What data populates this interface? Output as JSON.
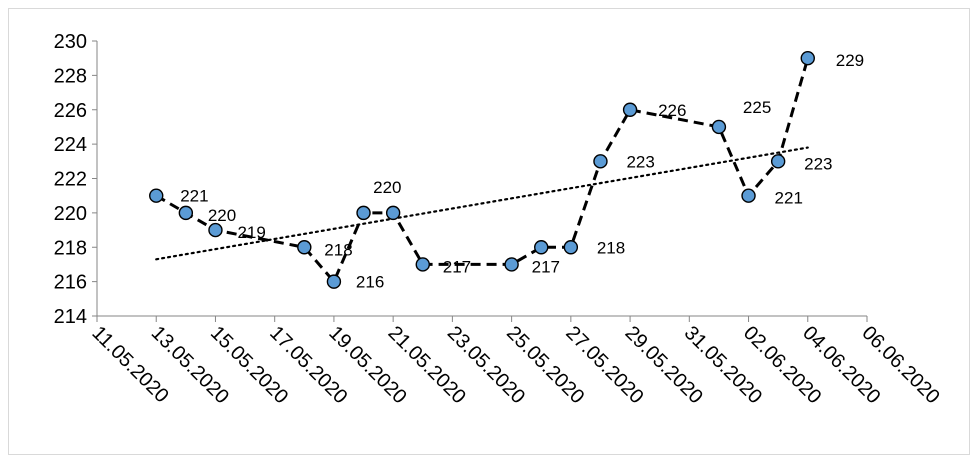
{
  "chart_data": {
    "type": "line",
    "title": "",
    "xlabel": "",
    "ylabel": "",
    "ylim": [
      214,
      230
    ],
    "y_tick_step": 2,
    "x_axis": {
      "kind": "date",
      "tick_labels": [
        "11.05.2020",
        "13.05.2020",
        "15.05.2020",
        "17.05.2020",
        "19.05.2020",
        "21.05.2020",
        "23.05.2020",
        "25.05.2020",
        "27.05.2020",
        "29.05.2020",
        "31.05.2020",
        "02.06.2020",
        "04.06.2020",
        "06.06.2020"
      ],
      "range": [
        "11.05.2020",
        "06.06.2020"
      ]
    },
    "series": [
      {
        "points": [
          {
            "x": "13.05.2020",
            "y": 221,
            "label": "221"
          },
          {
            "x": "14.05.2020",
            "y": 220,
            "label": "220"
          },
          {
            "x": "15.05.2020",
            "y": 219,
            "label": "219"
          },
          {
            "x": "18.05.2020",
            "y": 218,
            "label": "218"
          },
          {
            "x": "19.05.2020",
            "y": 216,
            "label": "216"
          },
          {
            "x": "20.05.2020",
            "y": 220,
            "label": ""
          },
          {
            "x": "21.05.2020",
            "y": 220,
            "label": "220"
          },
          {
            "x": "22.05.2020",
            "y": 217,
            "label": "217"
          },
          {
            "x": "25.05.2020",
            "y": 217,
            "label": "217"
          },
          {
            "x": "26.05.2020",
            "y": 218,
            "label": ""
          },
          {
            "x": "27.05.2020",
            "y": 218,
            "label": "218"
          },
          {
            "x": "28.05.2020",
            "y": 223,
            "label": "223"
          },
          {
            "x": "29.05.2020",
            "y": 226,
            "label": "226"
          },
          {
            "x": "01.06.2020",
            "y": 225,
            "label": "225"
          },
          {
            "x": "02.06.2020",
            "y": 221,
            "label": "221"
          },
          {
            "x": "03.06.2020",
            "y": 223,
            "label": "223"
          },
          {
            "x": "04.06.2020",
            "y": 229,
            "label": "229"
          }
        ],
        "line_style": "dashed",
        "line_color": "#000000",
        "marker": "circle",
        "marker_fill": "#5b9bd5",
        "marker_edge": "#000000"
      }
    ],
    "trendline": {
      "type": "linear",
      "style": "dotted",
      "color": "#000000",
      "from": {
        "x": "13.05.2020",
        "y": 217.3
      },
      "to": {
        "x": "04.06.2020",
        "y": 223.8
      }
    },
    "grid": false,
    "legend": "none"
  }
}
